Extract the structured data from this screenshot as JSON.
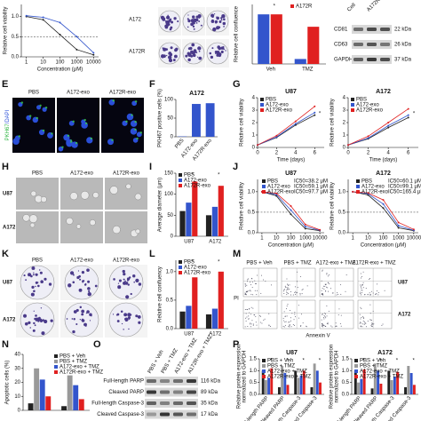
{
  "chart_data": [
    {
      "type": "line",
      "xlabel": "Concentration (μM)",
      "ylabel": "Relative cell viability",
      "log_x": true,
      "xlim": [
        0.5,
        20000
      ],
      "ylim": [
        0,
        1.3
      ],
      "xticks": [
        1,
        10,
        100,
        1000,
        10000
      ],
      "yticks": [
        {
          "value": 0,
          "label": "0.0"
        },
        0.5,
        {
          "value": 1,
          "label": "1.0"
        }
      ],
      "reference_line": 0.5,
      "x": [
        1,
        10,
        100,
        1000,
        10000
      ],
      "series": [
        {
          "color": "#222222",
          "values": [
            1.0,
            0.92,
            0.55,
            0.18,
            0.05
          ]
        },
        {
          "color": "#3355cc",
          "values": [
            1.02,
            0.98,
            0.85,
            0.5,
            0.1
          ]
        }
      ]
    },
    {
      "type": "bar",
      "ylabel": "Relative cell confluence",
      "categories": [
        "Veh",
        "TMZ"
      ],
      "ylim": [
        0,
        1.2
      ],
      "legend": "top-right",
      "annotations": [
        "*"
      ],
      "series": [
        {
          "color": "#3355cc",
          "values": [
            1.0,
            0.1
          ]
        },
        {
          "name": "A172R",
          "color": "#e02020",
          "values": [
            1.0,
            0.75
          ]
        }
      ]
    },
    {
      "type": "bar",
      "title": "A172",
      "ylabel": "PKH67 positive cells (%)",
      "categories": [
        "PBS",
        "A172-exo",
        "A172R-exo"
      ],
      "values": [
        1,
        88,
        90
      ],
      "color": "#3355cc",
      "ylim": [
        0,
        100
      ],
      "yticks": [
        0,
        50,
        100
      ]
    },
    {
      "type": "line",
      "title": "U87",
      "xlabel": "Time (days)",
      "ylabel": "Relative cell viability",
      "xlim": [
        0,
        7
      ],
      "ylim": [
        0,
        4
      ],
      "xticks": [
        0,
        2,
        4,
        6
      ],
      "yticks": [
        0,
        1,
        2,
        3,
        4
      ],
      "legend": "top-left",
      "annotations": [
        "*"
      ],
      "x": [
        0,
        2,
        4,
        6
      ],
      "series": [
        {
          "name": "PBS",
          "color": "#222222",
          "values": [
            0.2,
            0.8,
            1.8,
            2.6
          ]
        },
        {
          "name": "A172-exo",
          "color": "#3355cc",
          "values": [
            0.2,
            0.85,
            1.9,
            2.8
          ]
        },
        {
          "name": "A172R-exo",
          "color": "#e02020",
          "values": [
            0.2,
            0.95,
            2.1,
            3.3
          ]
        }
      ]
    },
    {
      "type": "line",
      "title": "A172",
      "xlabel": "Time (days)",
      "ylabel": "Relative cell viability",
      "xlim": [
        0,
        7
      ],
      "ylim": [
        0,
        4
      ],
      "xticks": [
        0,
        2,
        4,
        6
      ],
      "yticks": [
        0,
        1,
        2,
        3,
        4
      ],
      "legend": "top-left",
      "annotations": [
        "*"
      ],
      "x": [
        0,
        2,
        4,
        6
      ],
      "series": [
        {
          "name": "PBS",
          "color": "#222222",
          "values": [
            0.2,
            0.7,
            1.6,
            2.4
          ]
        },
        {
          "name": "A172-exo",
          "color": "#3355cc",
          "values": [
            0.2,
            0.75,
            1.75,
            2.6
          ]
        },
        {
          "name": "A172R-exo",
          "color": "#e02020",
          "values": [
            0.2,
            0.9,
            2.0,
            3.1
          ]
        }
      ]
    },
    {
      "type": "bar",
      "ylabel": "Average diameter (μm)",
      "categories": [
        "U87",
        "A172"
      ],
      "ylim": [
        0,
        150
      ],
      "yticks": [
        0,
        50,
        100,
        150
      ],
      "legend": "top-left",
      "annotations": [
        "*",
        "*"
      ],
      "series": [
        {
          "name": "PBS",
          "color": "#222222",
          "values": [
            60,
            50
          ]
        },
        {
          "name": "A172-exo",
          "color": "#3355cc",
          "values": [
            80,
            70
          ]
        },
        {
          "name": "A172R-exo",
          "color": "#e02020",
          "values": [
            130,
            120
          ]
        }
      ]
    },
    {
      "type": "line",
      "title": "U87",
      "xlabel": "Concentration (μM)",
      "ylabel": "Relative cell viability",
      "log_x": true,
      "xlim": [
        0.5,
        20000
      ],
      "ylim": [
        0,
        1.3
      ],
      "xticks": [
        1,
        10,
        100,
        1000,
        10000
      ],
      "yticks": [
        {
          "value": 0,
          "label": "0.0"
        },
        0.5,
        {
          "value": 1,
          "label": "1.0"
        }
      ],
      "reference_line": 0.5,
      "legend": "top-right",
      "x": [
        1,
        10,
        100,
        1000,
        10000
      ],
      "series": [
        {
          "name": "PBS",
          "label": "IC50=38.2 μM",
          "color": "#222222",
          "values": [
            1.0,
            0.9,
            0.45,
            0.1,
            0.05
          ]
        },
        {
          "name": "A172-exo",
          "label": "IC50=59.1 μM",
          "color": "#3355cc",
          "values": [
            1.0,
            0.93,
            0.55,
            0.15,
            0.06
          ]
        },
        {
          "name": "A172R-exo",
          "label": "IC50=97.7 μM",
          "color": "#e02020",
          "values": [
            1.0,
            0.96,
            0.65,
            0.2,
            0.07
          ]
        }
      ]
    },
    {
      "type": "line",
      "title": "A172",
      "xlabel": "Concentration (μM)",
      "ylabel": "Relative cell viability",
      "log_x": true,
      "xlim": [
        0.5,
        20000
      ],
      "ylim": [
        0,
        1.3
      ],
      "xticks": [
        1,
        10,
        100,
        1000,
        10000
      ],
      "yticks": [
        {
          "value": 0,
          "label": "0.0"
        },
        0.5,
        {
          "value": 1,
          "label": "1.0"
        }
      ],
      "reference_line": 0.5,
      "legend": "top-right",
      "x": [
        1,
        10,
        100,
        1000,
        10000
      ],
      "series": [
        {
          "name": "PBS",
          "label": "IC50=60.1 μM",
          "color": "#222222",
          "values": [
            1.0,
            0.92,
            0.6,
            0.12,
            0.05
          ]
        },
        {
          "name": "A172-exo",
          "label": "IC50=99.1 μM",
          "color": "#3355cc",
          "values": [
            1.0,
            0.95,
            0.7,
            0.17,
            0.06
          ]
        },
        {
          "name": "A172R-exo",
          "label": "IC50=165.4 μM",
          "color": "#e02020",
          "values": [
            1.0,
            0.97,
            0.8,
            0.25,
            0.08
          ]
        }
      ]
    },
    {
      "type": "bar",
      "ylabel": "Relative cell confluency",
      "categories": [
        "U87",
        "A172"
      ],
      "ylim": [
        0,
        1.2
      ],
      "yticks": [
        {
          "value": 0,
          "label": "0.0"
        },
        0.5,
        {
          "value": 1,
          "label": "1.0"
        }
      ],
      "legend": "top-left",
      "annotations": [
        "*",
        "*"
      ],
      "series": [
        {
          "name": "PBS",
          "color": "#222222",
          "values": [
            0.3,
            0.25
          ]
        },
        {
          "name": "A172-exo",
          "color": "#3355cc",
          "values": [
            0.4,
            0.35
          ]
        },
        {
          "name": "A172R-exo",
          "color": "#e02020",
          "values": [
            0.9,
            1.0
          ]
        }
      ]
    },
    {
      "type": "bar",
      "ylabel": "Apoptotic cells (%)",
      "categories": [
        null,
        null
      ],
      "ylim": [
        0,
        40
      ],
      "yticks": [
        0,
        10,
        20,
        30,
        40
      ],
      "legend": "top-right",
      "series": [
        {
          "name": "PBS + Veh",
          "color": "#222222",
          "values": [
            5,
            3
          ]
        },
        {
          "name": "PBS + TMZ",
          "color": "#999999",
          "values": [
            30,
            25
          ]
        },
        {
          "name": "A172-exo + TMZ",
          "color": "#3355cc",
          "values": [
            22,
            18
          ]
        },
        {
          "name": "A172R-exo + TMZ",
          "color": "#e02020",
          "values": [
            10,
            8
          ]
        }
      ]
    },
    {
      "type": "bar",
      "title": "U87",
      "ylabel": [
        "Relative protein expression",
        "normalized to GAPDH"
      ],
      "categories": [
        "Full-length PARP",
        "Cleaved PARP",
        "Full-length Caspase-3",
        "Cleaved Caspase-3"
      ],
      "ylim": [
        0,
        1.5
      ],
      "yticks": [
        {
          "value": 0,
          "label": "0.0"
        },
        0.5,
        {
          "value": 1,
          "label": "1.0"
        },
        1.5
      ],
      "legend": "top-left",
      "annotations": [
        "*",
        "*",
        "*",
        "*"
      ],
      "series": [
        {
          "name": "PBS + Veh",
          "color": "#222222",
          "values": [
            1.0,
            0.3,
            1.0,
            0.3
          ]
        },
        {
          "name": "PBS + TMZ",
          "color": "#999999",
          "values": [
            0.6,
            1.2,
            0.7,
            1.3
          ]
        },
        {
          "name": "A172-exo + TMZ",
          "color": "#3355cc",
          "values": [
            0.7,
            0.9,
            0.8,
            1.0
          ]
        },
        {
          "name": "A172R-exo + TMZ",
          "color": "#e02020",
          "values": [
            1.1,
            0.4,
            1.0,
            0.5
          ]
        }
      ]
    },
    {
      "type": "bar",
      "title": "A172",
      "ylabel": [
        "Relative protein expression",
        "normalized to GAPDH"
      ],
      "categories": [
        "Full-length PARP",
        "Cleaved PARP",
        "Full-length Caspase-3",
        "Cleaved Caspase-3"
      ],
      "ylim": [
        0,
        1.5
      ],
      "yticks": [
        {
          "value": 0,
          "label": "0.0"
        },
        0.5,
        {
          "value": 1,
          "label": "1.0"
        },
        1.5
      ],
      "legend": "top-left",
      "annotations": [
        "*",
        "*",
        "*",
        "*"
      ],
      "series": [
        {
          "name": "PBS + Veh",
          "color": "#222222",
          "values": [
            1.0,
            0.25,
            1.0,
            0.3
          ]
        },
        {
          "name": "PBS + TMZ",
          "color": "#999999",
          "values": [
            0.5,
            1.3,
            0.6,
            1.2
          ]
        },
        {
          "name": "A172-exo + TMZ",
          "color": "#3355cc",
          "values": [
            0.65,
            1.0,
            0.75,
            0.9
          ]
        },
        {
          "name": "A172R-exo + TMZ",
          "color": "#e02020",
          "values": [
            1.05,
            0.45,
            0.95,
            0.4
          ]
        }
      ]
    }
  ],
  "figure": {
    "panel_letters": [
      "E",
      "F",
      "G",
      "H",
      "I",
      "J",
      "K",
      "L",
      "M",
      "N",
      "O",
      "P"
    ],
    "colony_top": {
      "rows": [
        "A172",
        "A172R"
      ]
    },
    "blot_top": {
      "columns": [
        "Cell",
        "A172R-exo"
      ],
      "rows": [
        {
          "name": "CD81",
          "size": "22 kDa"
        },
        {
          "name": "CD63",
          "size": "26 kDa"
        },
        {
          "name": "GAPDH",
          "size": "37 kDa"
        }
      ]
    },
    "panel_e": {
      "columns": [
        "PBS",
        "A172-exo",
        "A172R-exo"
      ],
      "stain": [
        "PKH67",
        "/DAPI"
      ]
    },
    "panel_h": {
      "columns": [
        "PBS",
        "A172-exo",
        "A172R-exo"
      ],
      "rows": [
        "U87",
        "A172"
      ]
    },
    "panel_k": {
      "columns": [
        "PBS",
        "A172-exo",
        "A172R-exo"
      ],
      "rows": [
        "U87",
        "A172"
      ]
    },
    "panel_m": {
      "columns": [
        "PBS + Veh",
        "PBS + TMZ",
        "A172-exo + TMZ",
        "A172R-exo + TMZ"
      ],
      "rows": [
        "U87",
        "A172"
      ],
      "ylabel": "PI",
      "xlabel": "Annexin V"
    },
    "panel_o": {
      "columns": [
        "PBS + Veh",
        "PBS + TMZ",
        "A172-exo + TMZ",
        "A172R-exo + TMZ"
      ],
      "rows": [
        {
          "name": "Full-length PARP",
          "size": "116 kDa"
        },
        {
          "name": "Cleaved PARP",
          "size": "89 kDa"
        },
        {
          "name": "Full-length Caspase-3",
          "size": "35 kDa"
        },
        {
          "name": "Cleaved Caspase-3",
          "size": "17 kDa"
        }
      ]
    }
  }
}
